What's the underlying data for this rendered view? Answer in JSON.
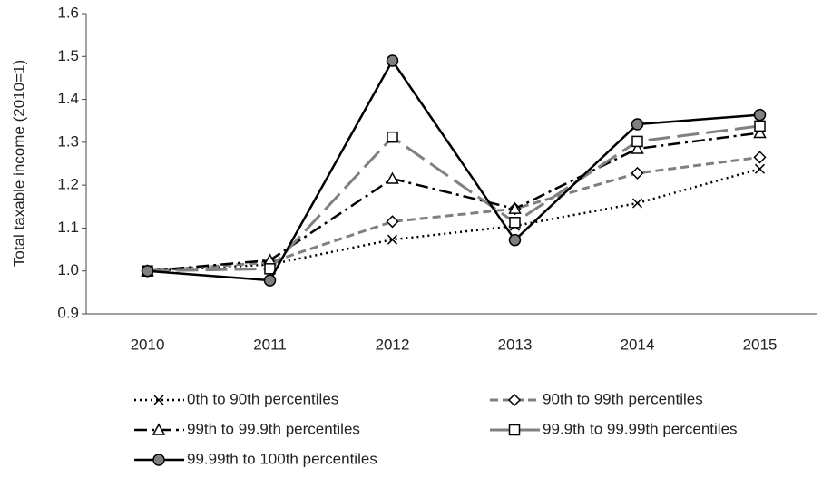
{
  "chart_data": {
    "type": "line",
    "y_label": "Total taxable income (2010=1)",
    "categories": [
      "2010",
      "2011",
      "2012",
      "2013",
      "2014",
      "2015"
    ],
    "ylim": [
      0.9,
      1.6
    ],
    "yticks": [
      0.9,
      {
        "value": 1,
        "label": "1.0"
      },
      1.1,
      1.2,
      1.3,
      1.4,
      1.5,
      1.6
    ],
    "grid": false,
    "series": [
      {
        "name": "0th to 90th percentiles",
        "color": "#000000",
        "marker": "x",
        "dash": "dotted",
        "values": [
          1.0,
          1.015,
          1.073,
          1.105,
          1.158,
          1.238
        ]
      },
      {
        "name": "90th to 99th percentiles",
        "color": "#808080",
        "marker": "diamond",
        "dash": "short",
        "values": [
          1.0,
          1.02,
          1.115,
          1.145,
          1.228,
          1.265
        ]
      },
      {
        "name": "99th to 99.9th percentiles",
        "color": "#000000",
        "marker": "triangle",
        "dash": "dashdot",
        "values": [
          1.0,
          1.025,
          1.215,
          1.145,
          1.285,
          1.322
        ]
      },
      {
        "name": "99.9th to 99.99th percentiles",
        "color": "#808080",
        "marker": "square",
        "dash": "long",
        "values": [
          1.0,
          1.005,
          1.312,
          1.113,
          1.302,
          1.338
        ]
      },
      {
        "name": "99.99th to 100th percentiles",
        "color": "#000000",
        "marker": "circle",
        "dash": "solid",
        "values": [
          1.0,
          0.978,
          1.49,
          1.072,
          1.342,
          1.364
        ]
      }
    ]
  }
}
